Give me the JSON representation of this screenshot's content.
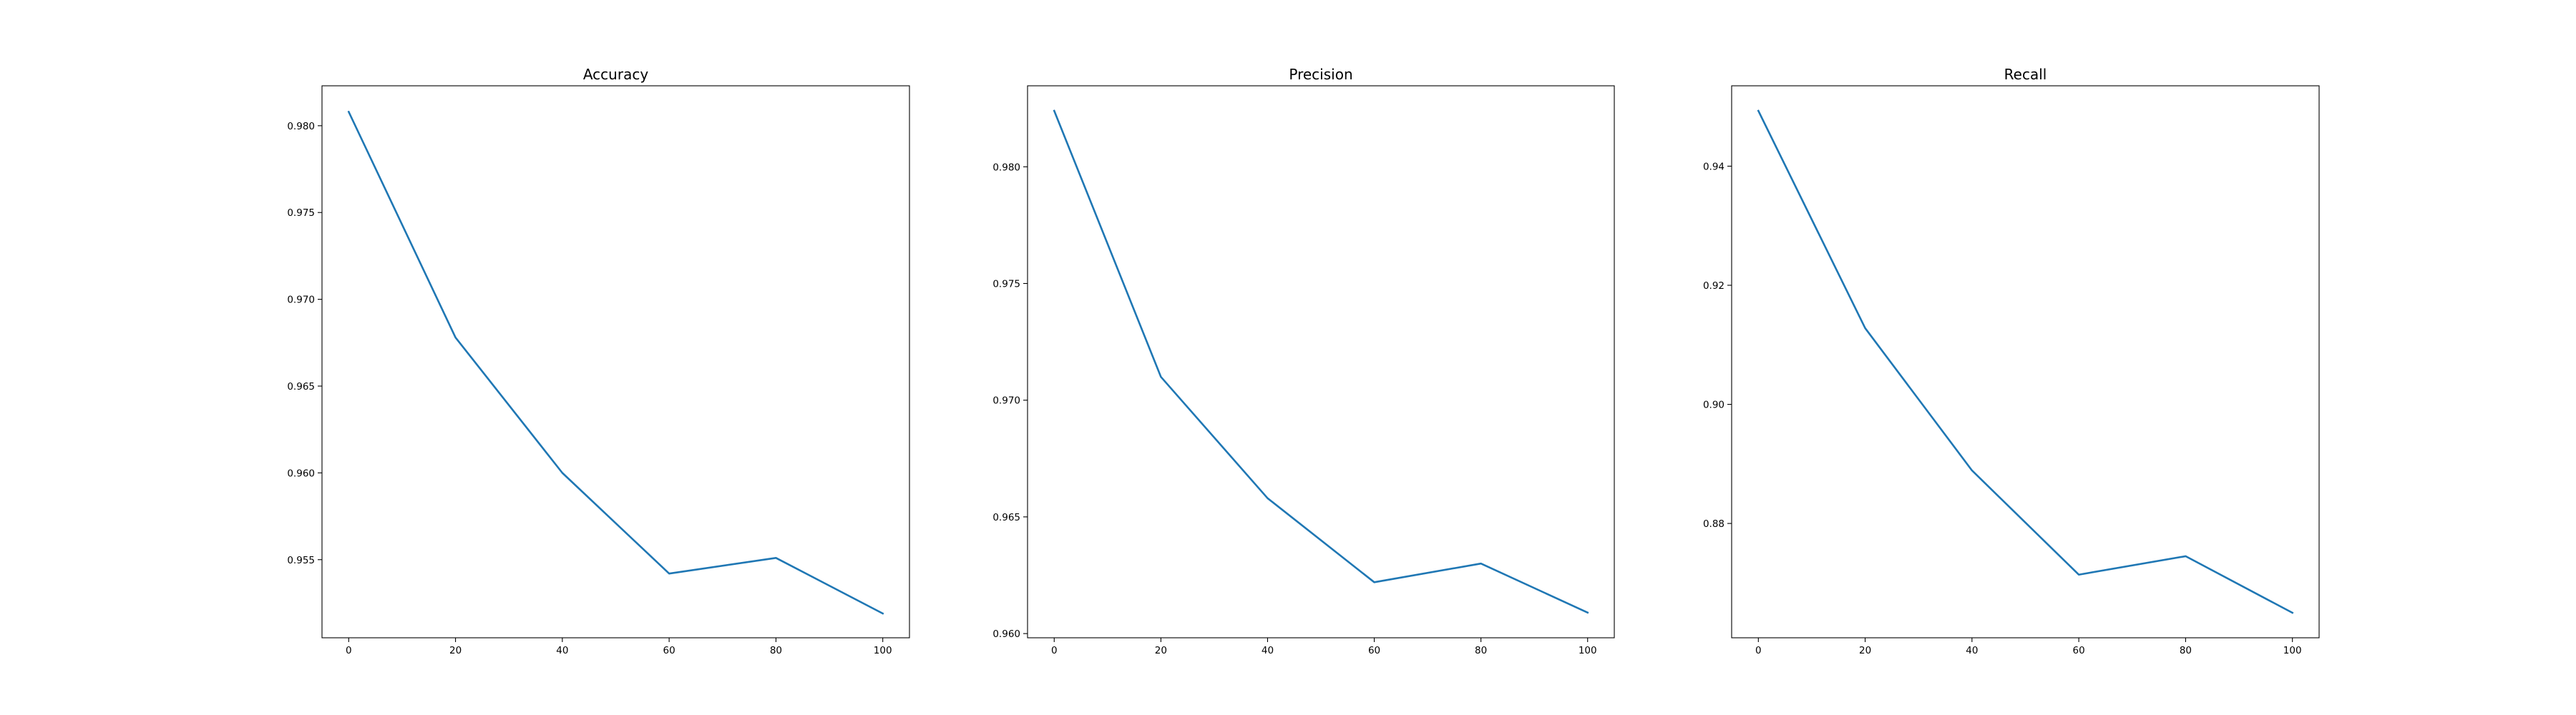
{
  "chart_data": [
    {
      "type": "line",
      "title": "Accuracy",
      "xlabel": "",
      "ylabel": "",
      "x": [
        0,
        20,
        40,
        60,
        80,
        100
      ],
      "series": [
        {
          "values": [
            0.9808,
            0.9678,
            0.96,
            0.9542,
            0.9551,
            0.9519
          ]
        }
      ],
      "xlim": [
        -5,
        105
      ],
      "ylim": [
        0.9505,
        0.9823
      ],
      "xticks": [
        0,
        20,
        40,
        60,
        80,
        100
      ],
      "yticks": [
        0.955,
        0.96,
        0.965,
        0.97,
        0.975,
        0.98
      ],
      "ytick_labels": [
        "0.955",
        "0.960",
        "0.965",
        "0.970",
        "0.975",
        "0.980"
      ],
      "grid": false,
      "legend": "none",
      "color": "#1f77b4"
    },
    {
      "type": "line",
      "title": "Precision",
      "xlabel": "",
      "ylabel": "",
      "x": [
        0,
        20,
        40,
        60,
        80,
        100
      ],
      "series": [
        {
          "values": [
            0.9824,
            0.971,
            0.9658,
            0.9622,
            0.963,
            0.9609
          ]
        }
      ],
      "xlim": [
        -5,
        105
      ],
      "ylim": [
        0.95982,
        0.98347
      ],
      "xticks": [
        0,
        20,
        40,
        60,
        80,
        100
      ],
      "yticks": [
        0.96,
        0.965,
        0.97,
        0.975,
        0.98
      ],
      "ytick_labels": [
        "0.960",
        "0.965",
        "0.970",
        "0.975",
        "0.980"
      ],
      "grid": false,
      "legend": "none",
      "color": "#1f77b4"
    },
    {
      "type": "line",
      "title": "Recall",
      "xlabel": "",
      "ylabel": "",
      "x": [
        0,
        20,
        40,
        60,
        80,
        100
      ],
      "series": [
        {
          "values": [
            0.9493,
            0.9128,
            0.8889,
            0.8714,
            0.8745,
            0.865
          ]
        }
      ],
      "xlim": [
        -5,
        105
      ],
      "ylim": [
        0.8608,
        0.9535
      ],
      "xticks": [
        0,
        20,
        40,
        60,
        80,
        100
      ],
      "yticks": [
        0.88,
        0.9,
        0.92,
        0.94
      ],
      "ytick_labels": [
        "0.88",
        "0.90",
        "0.92",
        "0.94"
      ],
      "grid": false,
      "legend": "none",
      "color": "#1f77b4"
    }
  ]
}
